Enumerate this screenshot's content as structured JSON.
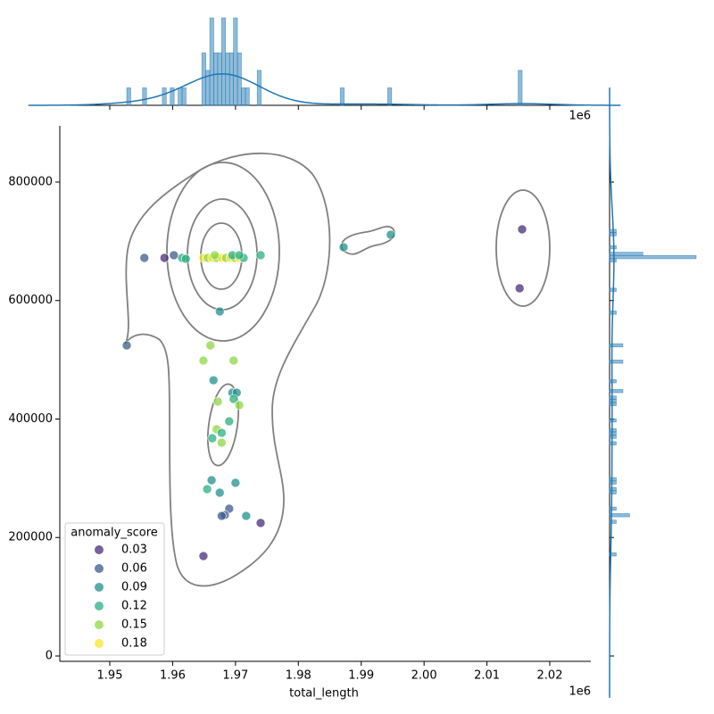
{
  "chart_data": {
    "type": "scatter",
    "x_label": "total_length",
    "x_offset_label": "1e6",
    "x": [
      1955500,
      1958700,
      1960200,
      1961500,
      1962100,
      1964900,
      1965600,
      1966300,
      1967000,
      1967800,
      1968500,
      1969200,
      1969900,
      1970600,
      1971300,
      1966700,
      1969500,
      1970600,
      1974000,
      1952700,
      1967500,
      1966000,
      1964900,
      1969700,
      1966500,
      1969500,
      1970200,
      1969700,
      1970600,
      1967200,
      1969000,
      1967000,
      1967800,
      1966300,
      1967800,
      1966200,
      1965500,
      1970000,
      1967500,
      1969000,
      1968300,
      1967800,
      1971700,
      1974000,
      1964900,
      1987200,
      1994700,
      2015600,
      2015200
    ],
    "y": [
      672000,
      672000,
      676500,
      672000,
      670400,
      672000,
      672000,
      672000,
      672000,
      672000,
      672000,
      672000,
      672000,
      672000,
      672000,
      676500,
      676500,
      676500,
      676500,
      524300,
      581600,
      524300,
      498700,
      498700,
      465500,
      444500,
      444500,
      433900,
      423400,
      429400,
      396200,
      382700,
      376700,
      367600,
      360100,
      296800,
      281700,
      292300,
      275700,
      248600,
      238000,
      236500,
      236500,
      224500,
      168700,
      690000,
      711100,
      720200,
      620700
    ],
    "hue": [
      0.06,
      0.03,
      0.06,
      0.12,
      0.12,
      0.18,
      0.15,
      0.18,
      0.15,
      0.18,
      0.15,
      0.18,
      0.15,
      0.18,
      0.12,
      0.15,
      0.12,
      0.12,
      0.12,
      0.06,
      0.09,
      0.15,
      0.15,
      0.15,
      0.09,
      0.09,
      0.09,
      0.12,
      0.15,
      0.15,
      0.12,
      0.15,
      0.12,
      0.12,
      0.15,
      0.09,
      0.12,
      0.09,
      0.09,
      0.06,
      0.06,
      0.06,
      0.09,
      0.03,
      0.03,
      0.09,
      0.09,
      0.03,
      0.03
    ],
    "legend": {
      "title": "anomaly_score",
      "levels": [
        0.03,
        0.06,
        0.09,
        0.12,
        0.15,
        0.18
      ],
      "colors": [
        "#472c7a",
        "#3b5b8b",
        "#21918c",
        "#29af7f",
        "#8fd744",
        "#f5e626"
      ]
    },
    "marginal_color": "#1f77b4",
    "marginal_bins": 100,
    "xlim": [
      1942050,
      2026530
    ],
    "ylim": [
      -9040,
      894900
    ],
    "xticks": [
      {
        "value": 1950000,
        "label": "1.95"
      },
      {
        "value": 1960000,
        "label": "1.96"
      },
      {
        "value": 1970000,
        "label": "1.97"
      },
      {
        "value": 1980000,
        "label": "1.98"
      },
      {
        "value": 1990000,
        "label": "1.99"
      },
      {
        "value": 2000000,
        "label": "2.00"
      },
      {
        "value": 2010000,
        "label": "2.01"
      },
      {
        "value": 2020000,
        "label": "2.02"
      }
    ],
    "yticks": [
      0,
      200000,
      400000,
      600000,
      800000
    ]
  }
}
